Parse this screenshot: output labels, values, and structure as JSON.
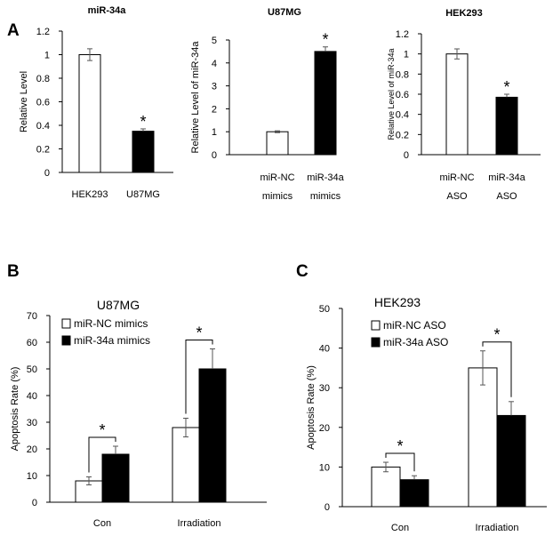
{
  "panel_letters": [
    "A",
    "B",
    "C"
  ],
  "chart_data": [
    {
      "type": "bar",
      "title": "miR-34a",
      "ylabel": "Relative  Level",
      "ylim": [
        0,
        1.2
      ],
      "yticks": [
        "0",
        "0.2",
        "0.4",
        "0.6",
        "0.8",
        "1",
        "1.2"
      ],
      "categories": [
        [
          "HEK293"
        ],
        [
          "U87MG"
        ]
      ],
      "values": [
        1.0,
        0.35
      ],
      "errors": [
        0.05,
        0.02
      ],
      "fills": [
        "#ffffff",
        "#000000"
      ],
      "annotations": [
        {
          "text": "*",
          "category": 1
        }
      ]
    },
    {
      "type": "bar",
      "title": "U87MG",
      "ylabel": "Relative Level of miR-34a",
      "ylim": [
        0,
        5
      ],
      "yticks": [
        "0",
        "1",
        "2",
        "3",
        "4",
        "5"
      ],
      "categories": [
        [
          "miR-NC",
          "mimics"
        ],
        [
          "miR-34a",
          "mimics"
        ]
      ],
      "values": [
        1.0,
        4.5
      ],
      "errors": [
        0.04,
        0.2
      ],
      "fills": [
        "#ffffff",
        "#000000"
      ],
      "annotations": [
        {
          "text": "*",
          "category": 1
        }
      ]
    },
    {
      "type": "bar",
      "title": "HEK293",
      "ylabel": "Relative Level of miR-34a",
      "ylim": [
        0,
        1.2
      ],
      "yticks": [
        "0",
        "0.2",
        "0.4",
        "0.6",
        "0.8",
        "1",
        "1.2"
      ],
      "categories": [
        [
          "miR-NC",
          "ASO"
        ],
        [
          "miR-34a",
          "ASO"
        ]
      ],
      "values": [
        1.0,
        0.57
      ],
      "errors": [
        0.05,
        0.03
      ],
      "fills": [
        "#ffffff",
        "#000000"
      ],
      "annotations": [
        {
          "text": "*",
          "category": 1
        }
      ]
    },
    {
      "type": "bar",
      "title": "U87MG",
      "ylabel": "Apoptosis Rate (%)",
      "ylim": [
        0,
        70
      ],
      "yticks": [
        "0",
        "10",
        "20",
        "30",
        "40",
        "50",
        "60",
        "70"
      ],
      "categories": [
        "Con",
        "Irradiation"
      ],
      "series": [
        {
          "name": "miR-NC mimics",
          "values": [
            8,
            28
          ],
          "errors": [
            1.5,
            3.5
          ],
          "fill": "#ffffff"
        },
        {
          "name": "miR-34a mimics",
          "values": [
            18,
            50
          ],
          "errors": [
            3,
            7.5
          ],
          "fill": "#000000"
        }
      ],
      "legend": "top-left",
      "annotations": [
        {
          "text": "*",
          "category": 0
        },
        {
          "text": "*",
          "category": 1
        }
      ]
    },
    {
      "type": "bar",
      "title": "HEK293",
      "ylabel": "Apoptosis Rate (%)",
      "ylim": [
        0,
        50
      ],
      "yticks": [
        "0",
        "10",
        "20",
        "30",
        "40",
        "50"
      ],
      "categories": [
        "Con",
        "Irradiation"
      ],
      "series": [
        {
          "name": "miR-NC ASO",
          "values": [
            10,
            35
          ],
          "errors": [
            1.2,
            4.3
          ],
          "fill": "#ffffff"
        },
        {
          "name": "miR-34a ASO",
          "values": [
            6.8,
            23
          ],
          "errors": [
            1,
            3.5
          ],
          "fill": "#000000"
        }
      ],
      "legend": "top-left",
      "annotations": [
        {
          "text": "*",
          "category": 0
        },
        {
          "text": "*",
          "category": 1
        }
      ]
    }
  ]
}
